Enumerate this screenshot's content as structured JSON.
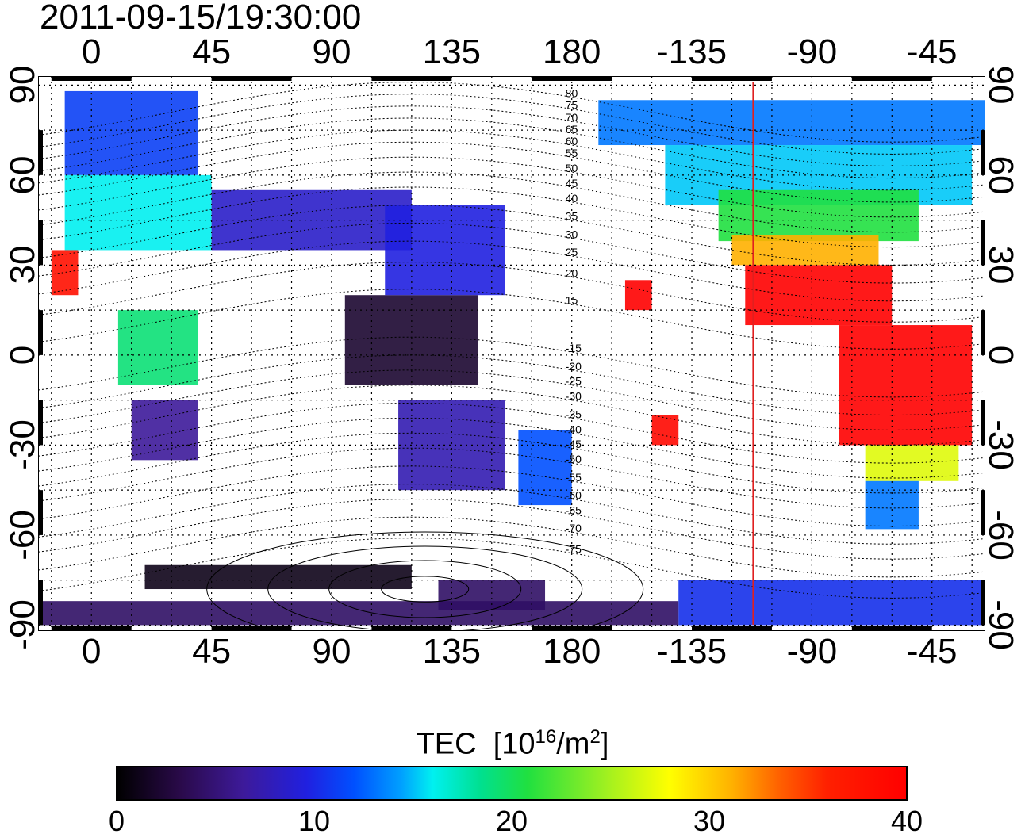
{
  "timestamp": "2011-09-15/19:30:00",
  "map": {
    "lon_ticks_top": [
      "0",
      "45",
      "90",
      "135",
      "180",
      "-135",
      "-90",
      "-45"
    ],
    "lon_ticks_bottom": [
      "0",
      "45",
      "90",
      "135",
      "180",
      "-135",
      "-90",
      "-45"
    ],
    "lat_ticks_left": [
      "90",
      "60",
      "30",
      "0",
      "-30",
      "-60",
      "-90"
    ],
    "lat_ticks_right": [
      "90",
      "60",
      "30",
      "0",
      "-30",
      "-60",
      "-90"
    ],
    "lon_range": [
      -20,
      335
    ],
    "lat_range": [
      -92,
      93
    ],
    "marked_meridian_lon": -112,
    "marked_meridian_color": "#e02020",
    "contour_labels": [
      "80",
      "75",
      "70",
      "65",
      "60",
      "55",
      "50",
      "45",
      "40",
      "35",
      "30",
      "25",
      "20",
      "15",
      "-15",
      "-20",
      "-25",
      "-30",
      "-35",
      "-40",
      "-45",
      "-50",
      "-55",
      "-60",
      "-65",
      "-70",
      "-75"
    ],
    "contour_label_lats": [
      81,
      77,
      73,
      69,
      65,
      61,
      56,
      51,
      46,
      40,
      34,
      28,
      21,
      12,
      -4,
      -10,
      -15,
      -20,
      -26,
      -31,
      -36,
      -41,
      -47,
      -53,
      -58,
      -64,
      -71
    ],
    "tec_regions": [
      {
        "lon_min": -10,
        "lon_max": 40,
        "lat_min": 60,
        "lat_max": 88,
        "tec": 11
      },
      {
        "lon_min": -10,
        "lon_max": 45,
        "lat_min": 35,
        "lat_max": 60,
        "tec": 16
      },
      {
        "lon_min": -15,
        "lon_max": -5,
        "lat_min": 20,
        "lat_max": 35,
        "tec": 38
      },
      {
        "lon_min": 45,
        "lon_max": 120,
        "lat_min": 35,
        "lat_max": 55,
        "tec": 8
      },
      {
        "lon_min": 95,
        "lon_max": 145,
        "lat_min": -10,
        "lat_max": 20,
        "tec": 2
      },
      {
        "lon_min": 110,
        "lon_max": 155,
        "lat_min": 20,
        "lat_max": 50,
        "tec": 9
      },
      {
        "lon_min": 15,
        "lon_max": 40,
        "lat_min": -35,
        "lat_max": -15,
        "tec": 6
      },
      {
        "lon_min": 10,
        "lon_max": 40,
        "lat_min": -10,
        "lat_max": 15,
        "tec": 19
      },
      {
        "lon_min": 115,
        "lon_max": 155,
        "lat_min": -45,
        "lat_max": -15,
        "tec": 7
      },
      {
        "lon_min": 160,
        "lon_max": 180,
        "lat_min": -50,
        "lat_max": -25,
        "tec": 12
      },
      {
        "lon_min": 190,
        "lon_max": 340,
        "lat_min": 70,
        "lat_max": 85,
        "tec": 13
      },
      {
        "lon_min": 215,
        "lon_max": 330,
        "lat_min": 50,
        "lat_max": 70,
        "tec": 15
      },
      {
        "lon_min": 235,
        "lon_max": 310,
        "lat_min": 38,
        "lat_max": 55,
        "tec": 21
      },
      {
        "lon_min": 240,
        "lon_max": 295,
        "lat_min": 30,
        "lat_max": 40,
        "tec": 31
      },
      {
        "lon_min": 245,
        "lon_max": 300,
        "lat_min": 10,
        "lat_max": 30,
        "tec": 40
      },
      {
        "lon_min": 280,
        "lon_max": 330,
        "lat_min": -30,
        "lat_max": 10,
        "tec": 40
      },
      {
        "lon_min": 290,
        "lon_max": 325,
        "lat_min": -42,
        "lat_max": -30,
        "tec": 27
      },
      {
        "lon_min": 290,
        "lon_max": 310,
        "lat_min": -58,
        "lat_max": -42,
        "tec": 13
      },
      {
        "lon_min": 200,
        "lon_max": 210,
        "lat_min": 15,
        "lat_max": 25,
        "tec": 40
      },
      {
        "lon_min": 210,
        "lon_max": 220,
        "lat_min": -30,
        "lat_max": -20,
        "tec": 39
      },
      {
        "lon_min": 220,
        "lon_max": 340,
        "lat_min": -90,
        "lat_max": -75,
        "tec": 10
      },
      {
        "lon_min": -20,
        "lon_max": 220,
        "lat_min": -90,
        "lat_max": -82,
        "tec": 4
      },
      {
        "lon_min": 130,
        "lon_max": 170,
        "lat_min": -85,
        "lat_max": -75,
        "tec": 4
      },
      {
        "lon_min": 20,
        "lon_max": 120,
        "lat_min": -78,
        "lat_max": -70,
        "tec": 1
      }
    ]
  },
  "colorbar": {
    "title": "TEC",
    "unit_prefix": "[10",
    "unit_exp": "16",
    "unit_mid": "/m",
    "unit_exp2": "2",
    "unit_suffix": "]",
    "ticks": [
      "0",
      "10",
      "20",
      "30",
      "40"
    ],
    "min": 0,
    "max": 40
  }
}
